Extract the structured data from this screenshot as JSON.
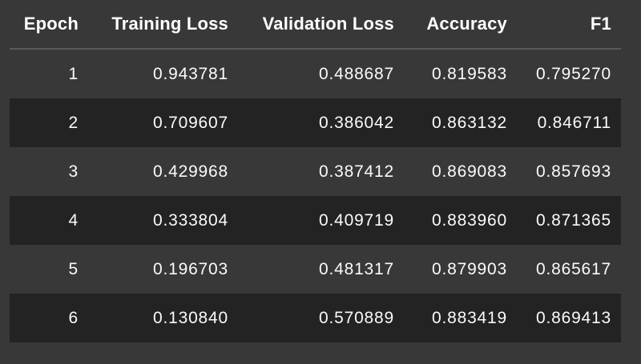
{
  "table": {
    "columns": [
      "Epoch",
      "Training Loss",
      "Validation Loss",
      "Accuracy",
      "F1"
    ],
    "column_keys": [
      "epoch",
      "training-loss",
      "validation-loss",
      "accuracy",
      "f1"
    ],
    "rows": [
      [
        "1",
        "0.943781",
        "0.488687",
        "0.819583",
        "0.795270"
      ],
      [
        "2",
        "0.709607",
        "0.386042",
        "0.863132",
        "0.846711"
      ],
      [
        "3",
        "0.429968",
        "0.387412",
        "0.869083",
        "0.857693"
      ],
      [
        "4",
        "0.333804",
        "0.409719",
        "0.883960",
        "0.871365"
      ],
      [
        "5",
        "0.196703",
        "0.481317",
        "0.879903",
        "0.865617"
      ],
      [
        "6",
        "0.130840",
        "0.570889",
        "0.883419",
        "0.869413"
      ]
    ],
    "colors": {
      "background": "#383838",
      "stripe": "#232323",
      "divider": "#5a5a5a",
      "header_text": "#ffffff",
      "cell_text": "#fafafa"
    }
  },
  "chart_data": {
    "type": "table",
    "title": "",
    "columns": [
      "Epoch",
      "Training Loss",
      "Validation Loss",
      "Accuracy",
      "F1"
    ],
    "rows": [
      [
        1,
        0.943781,
        0.488687,
        0.819583,
        0.79527
      ],
      [
        2,
        0.709607,
        0.386042,
        0.863132,
        0.846711
      ],
      [
        3,
        0.429968,
        0.387412,
        0.869083,
        0.857693
      ],
      [
        4,
        0.333804,
        0.409719,
        0.88396,
        0.871365
      ],
      [
        5,
        0.196703,
        0.481317,
        0.879903,
        0.865617
      ],
      [
        6,
        0.13084,
        0.570889,
        0.883419,
        0.869413
      ]
    ],
    "layout": {
      "zebra_striping": true,
      "dark_theme": true,
      "value_alignment": "right"
    }
  }
}
